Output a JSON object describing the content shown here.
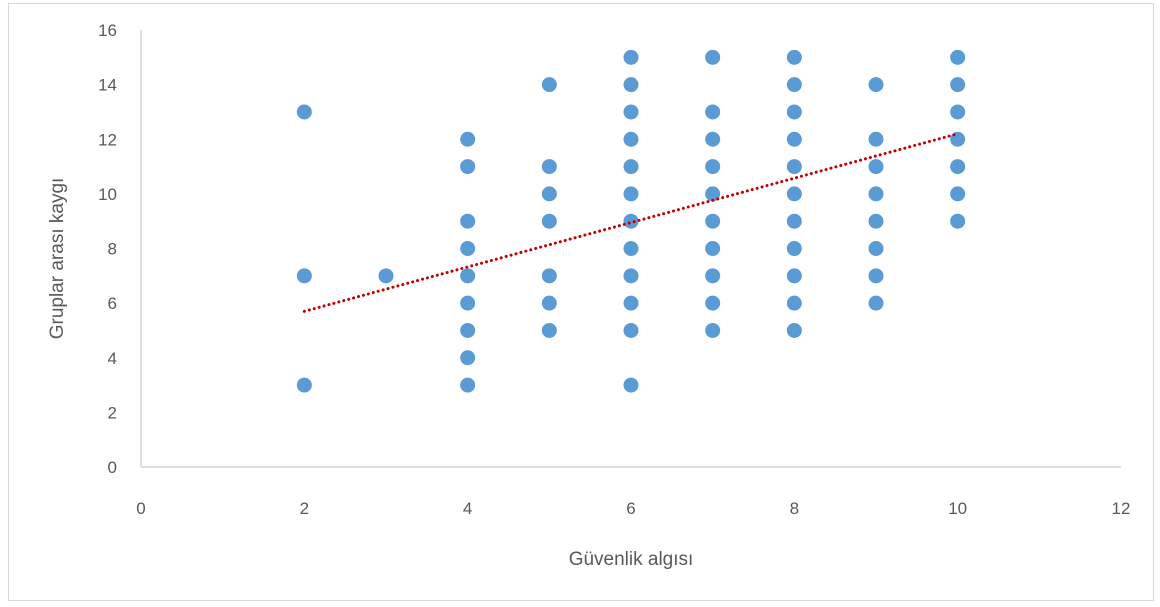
{
  "chart_data": {
    "type": "scatter",
    "xlabel": "Güvenlik algısı",
    "ylabel": "Gruplar arası kaygı",
    "xlim": [
      0,
      12
    ],
    "ylim": [
      0,
      16
    ],
    "xticks": [
      0,
      2,
      4,
      6,
      8,
      10,
      12
    ],
    "yticks": [
      0,
      2,
      4,
      6,
      8,
      10,
      12,
      14,
      16
    ],
    "grid": false,
    "legend": "none",
    "marker_color": "#5b9bd5",
    "trendline": {
      "type": "linear",
      "x": [
        2,
        10
      ],
      "y": [
        5.7,
        12.2
      ],
      "color": "#c00000",
      "style": "dotted"
    },
    "points": [
      [
        2,
        13
      ],
      [
        2,
        7
      ],
      [
        2,
        3
      ],
      [
        3,
        7
      ],
      [
        4,
        12
      ],
      [
        4,
        11
      ],
      [
        4,
        9
      ],
      [
        4,
        8
      ],
      [
        4,
        7
      ],
      [
        4,
        6
      ],
      [
        4,
        5
      ],
      [
        4,
        4
      ],
      [
        4,
        3
      ],
      [
        5,
        14
      ],
      [
        5,
        11
      ],
      [
        5,
        10
      ],
      [
        5,
        9
      ],
      [
        5,
        7
      ],
      [
        5,
        6
      ],
      [
        5,
        5
      ],
      [
        6,
        15
      ],
      [
        6,
        14
      ],
      [
        6,
        13
      ],
      [
        6,
        12
      ],
      [
        6,
        11
      ],
      [
        6,
        10
      ],
      [
        6,
        9
      ],
      [
        6,
        8
      ],
      [
        6,
        7
      ],
      [
        6,
        6
      ],
      [
        6,
        5
      ],
      [
        6,
        3
      ],
      [
        7,
        15
      ],
      [
        7,
        13
      ],
      [
        7,
        12
      ],
      [
        7,
        11
      ],
      [
        7,
        10
      ],
      [
        7,
        9
      ],
      [
        7,
        8
      ],
      [
        7,
        7
      ],
      [
        7,
        6
      ],
      [
        7,
        5
      ],
      [
        8,
        15
      ],
      [
        8,
        14
      ],
      [
        8,
        13
      ],
      [
        8,
        12
      ],
      [
        8,
        11
      ],
      [
        8,
        10
      ],
      [
        8,
        9
      ],
      [
        8,
        8
      ],
      [
        8,
        7
      ],
      [
        8,
        6
      ],
      [
        8,
        5
      ],
      [
        9,
        14
      ],
      [
        9,
        12
      ],
      [
        9,
        11
      ],
      [
        9,
        10
      ],
      [
        9,
        9
      ],
      [
        9,
        8
      ],
      [
        9,
        7
      ],
      [
        9,
        6
      ],
      [
        10,
        15
      ],
      [
        10,
        14
      ],
      [
        10,
        13
      ],
      [
        10,
        12
      ],
      [
        10,
        11
      ],
      [
        10,
        10
      ],
      [
        10,
        9
      ]
    ]
  }
}
